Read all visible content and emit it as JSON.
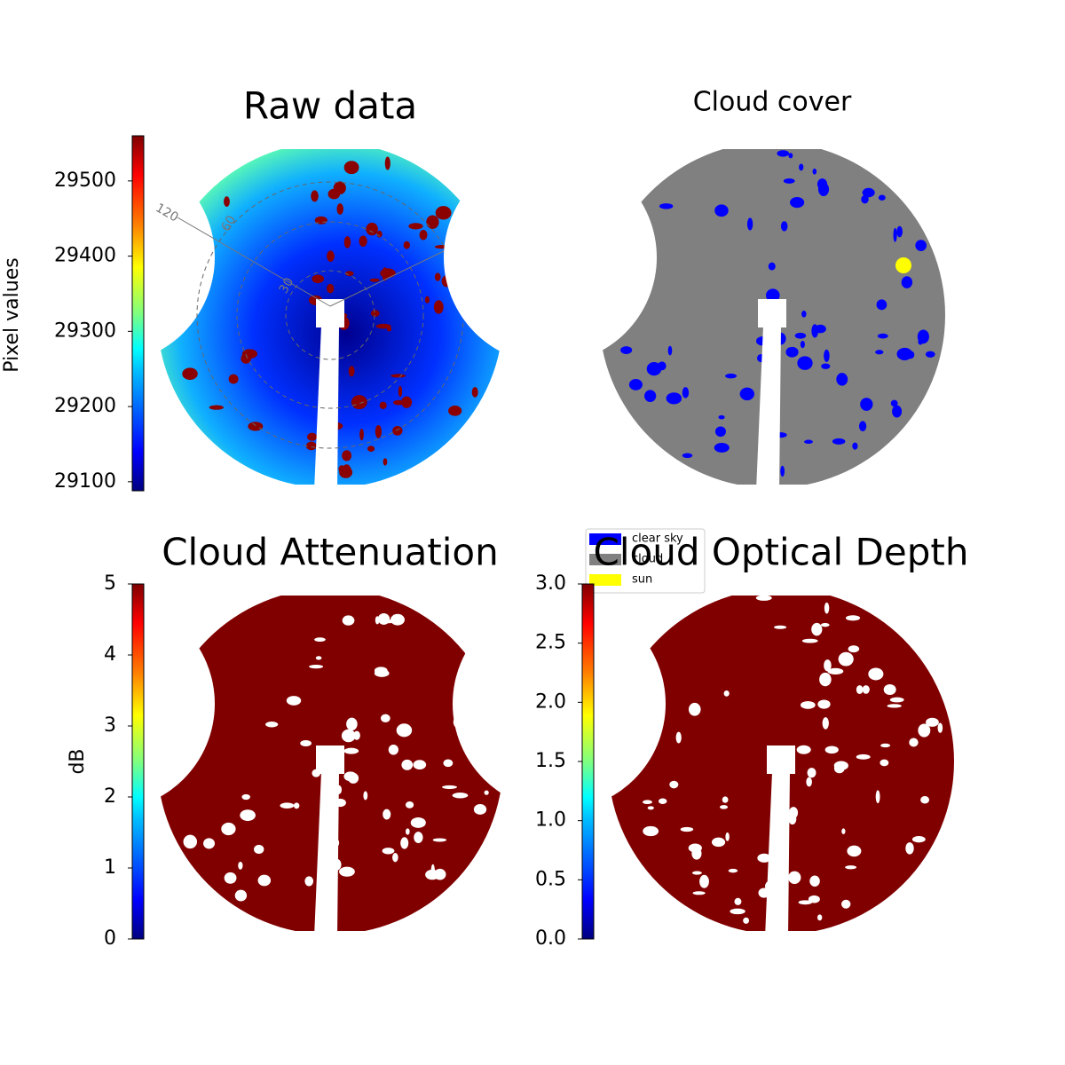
{
  "chart_data": [
    {
      "type": "image",
      "title": "Raw data",
      "colorbar": {
        "label": "Pixel values",
        "ylim": [
          29088,
          29560
        ],
        "yticks": [
          29100,
          29200,
          29300,
          29400,
          29500
        ]
      },
      "annotations": [
        "120",
        "60",
        "30"
      ]
    },
    {
      "type": "image",
      "title": "Cloud cover",
      "series": [
        {
          "name": "clear sky",
          "color": "#0000ff"
        },
        {
          "name": "cloud",
          "color": "#808080"
        },
        {
          "name": "sun",
          "color": "#ffff00"
        }
      ]
    },
    {
      "type": "image",
      "title": "Cloud Attenuation",
      "colorbar": {
        "label": "dB",
        "ylim": [
          0,
          5
        ],
        "yticks": [
          0,
          1,
          2,
          3,
          4,
          5
        ]
      }
    },
    {
      "type": "image",
      "title": "Cloud Optical Depth",
      "colorbar": {
        "ylim": [
          0,
          3
        ],
        "yticks": [
          {
            "value": 0,
            "label": "0.0"
          },
          0.5,
          {
            "value": 1,
            "label": "1.0"
          },
          1.5,
          {
            "value": 2,
            "label": "2.0"
          },
          2.5,
          {
            "value": 3,
            "label": "3.0"
          }
        ]
      }
    }
  ]
}
